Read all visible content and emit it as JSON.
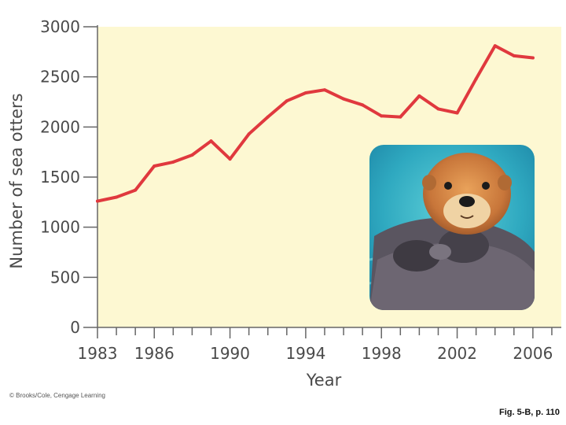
{
  "chart_data": {
    "type": "line",
    "xlabel": "Year",
    "ylabel": "Number of sea otters",
    "xlim": [
      1983,
      2007.5
    ],
    "ylim": [
      0,
      3000
    ],
    "xticks": [
      1983,
      1986,
      1990,
      1994,
      1998,
      2002,
      2006
    ],
    "yticks": [
      0,
      500,
      1000,
      1500,
      2000,
      2500,
      3000
    ],
    "grid": false,
    "background_color": "#fdf8d2",
    "line_color": "#e0393e",
    "series": [
      {
        "x": [
          1983,
          1984,
          1985,
          1986,
          1987,
          1988,
          1989,
          1990,
          1991,
          1992,
          1993,
          1994,
          1995,
          1996,
          1997,
          1998,
          1999,
          2000,
          2001,
          2002,
          2003,
          2004,
          2005,
          2006
        ],
        "values": [
          1260,
          1300,
          1370,
          1610,
          1650,
          1720,
          1860,
          1680,
          1930,
          2100,
          2260,
          2340,
          2370,
          2280,
          2220,
          2110,
          2100,
          2310,
          2180,
          2140,
          2480,
          2810,
          2710,
          2690
        ]
      }
    ]
  },
  "photo": {
    "subject": "sea-otter-photo"
  },
  "credit": "© Brooks/Cole, Cengage Learning",
  "caption": "Fig. 5-B, p. 110"
}
